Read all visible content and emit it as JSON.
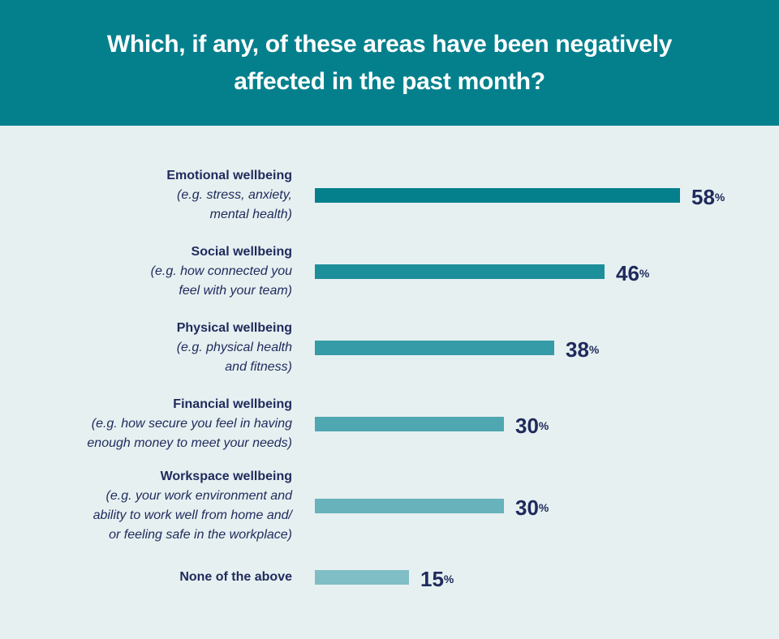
{
  "header": {
    "title": "Which, if any, of these areas have been negatively affected in the past month?"
  },
  "rows": [
    {
      "title": "Emotional wellbeing",
      "desc": "(e.g. stress, anxiety,\nmental health)",
      "value": "58",
      "pct": "%",
      "color": "#04808d"
    },
    {
      "title": "Social wellbeing",
      "desc": "(e.g. how connected you\nfeel with your team)",
      "value": "46",
      "pct": "%",
      "color": "#1c8f9a"
    },
    {
      "title": "Physical wellbeing",
      "desc": "(e.g. physical health\nand fitness)",
      "value": "38",
      "pct": "%",
      "color": "#359ba6"
    },
    {
      "title": "Financial wellbeing",
      "desc": "(e.g. how secure you feel in having\nenough money to meet your needs)",
      "value": "30",
      "pct": "%",
      "color": "#4fa7b1"
    },
    {
      "title": "Workspace wellbeing",
      "desc": "(e.g. your work environment and\nability to work well from home and/\nor feeling safe in the workplace)",
      "value": "30",
      "pct": "%",
      "color": "#67b2bb"
    },
    {
      "title": "None of the above",
      "desc": "",
      "value": "15",
      "pct": "%",
      "color": "#7fbec5"
    }
  ],
  "chart_data": {
    "type": "bar",
    "orientation": "horizontal",
    "title": "Which, if any, of these areas have been negatively affected in the past month?",
    "categories": [
      "Emotional wellbeing (e.g. stress, anxiety, mental health)",
      "Social wellbeing (e.g. how connected you feel with your team)",
      "Physical wellbeing (e.g. physical health and fitness)",
      "Financial wellbeing (e.g. how secure you feel in having enough money to meet your needs)",
      "Workspace wellbeing (e.g. your work environment and ability to work well from home and/or feeling safe in the workplace)",
      "None of the above"
    ],
    "values": [
      58,
      46,
      38,
      30,
      30,
      15
    ],
    "unit": "%",
    "xlabel": "",
    "ylabel": "",
    "grid": false,
    "legend": "none",
    "data_labels": true
  }
}
